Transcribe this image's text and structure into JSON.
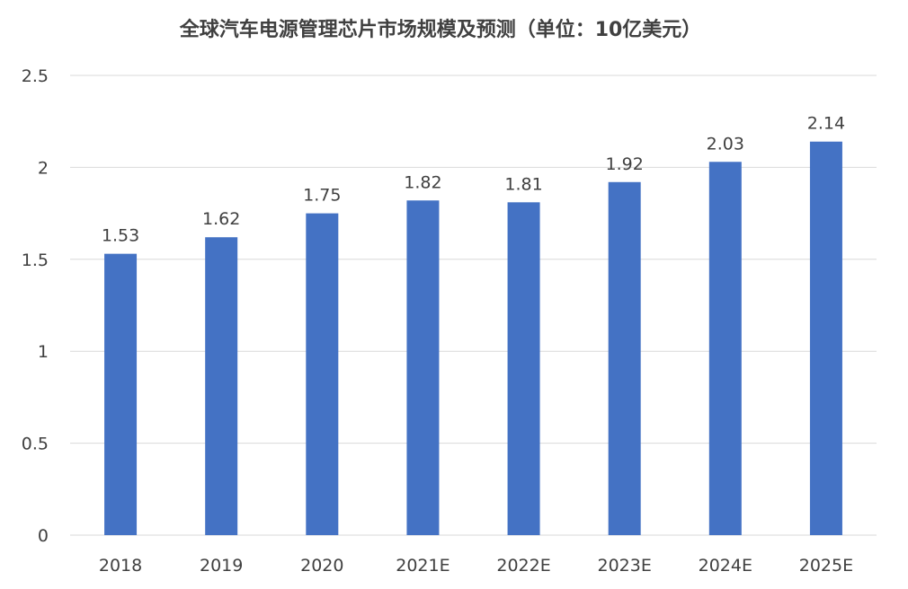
{
  "chart_data": {
    "type": "bar",
    "title": "全球汽车电源管理芯片市场规模及预测（单位：10亿美元）",
    "xlabel": "",
    "ylabel": "",
    "categories": [
      "2018",
      "2019",
      "2020",
      "2021E",
      "2022E",
      "2023E",
      "2024E",
      "2025E"
    ],
    "values": [
      1.53,
      1.62,
      1.75,
      1.82,
      1.81,
      1.92,
      2.03,
      2.14
    ],
    "ylim": [
      0,
      2.5
    ],
    "yticks": [
      "0",
      "0.5",
      "1",
      "1.5",
      "2",
      "2.5"
    ],
    "grid": true,
    "legend": "none",
    "colors": {
      "bar": "#4472c4",
      "grid": "#d9d9d9",
      "text": "#404040"
    }
  }
}
